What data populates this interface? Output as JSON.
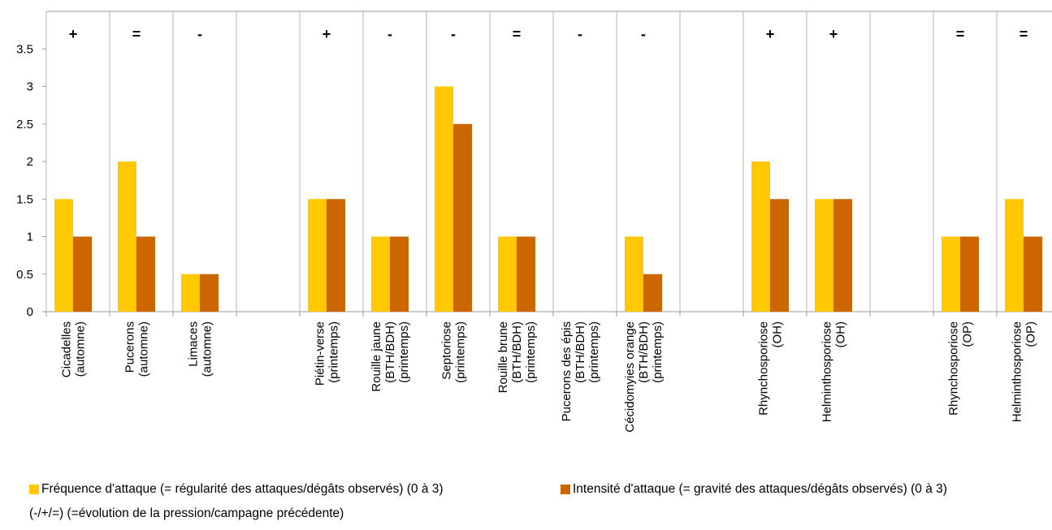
{
  "chart_data": {
    "type": "bar",
    "ylim": [
      0,
      4
    ],
    "yticks": [
      "0",
      "0.5",
      "1",
      "1.5",
      "2",
      "2.5",
      "3",
      "3.5"
    ],
    "categories": [
      {
        "lines": [
          "Cicadelles",
          "(automne)"
        ],
        "trend": "+"
      },
      {
        "lines": [
          "Pucerons",
          "(automne)"
        ],
        "trend": "="
      },
      {
        "lines": [
          "Limaces",
          "(automne)"
        ],
        "trend": "-"
      },
      {
        "lines": [],
        "trend": ""
      },
      {
        "lines": [
          "Piétin-verse",
          "(printemps)"
        ],
        "trend": "+"
      },
      {
        "lines": [
          "Rouille jaune",
          "(BTH/BDH)",
          "(printemps)"
        ],
        "trend": "-"
      },
      {
        "lines": [
          "Septoriose",
          "(printemps)"
        ],
        "trend": "-"
      },
      {
        "lines": [
          "Rouille brune",
          "(BTH/BDH)",
          "(printemps)"
        ],
        "trend": "="
      },
      {
        "lines": [
          "Pucerons des épis",
          "(BTH/BDH)",
          "(printemps)"
        ],
        "trend": "-"
      },
      {
        "lines": [
          "Cécidomyies orange",
          "(BTH/BDH)",
          "(printemps)"
        ],
        "trend": "-"
      },
      {
        "lines": [],
        "trend": ""
      },
      {
        "lines": [
          "Rhynchosporiose",
          "(OH)"
        ],
        "trend": "+"
      },
      {
        "lines": [
          "Helminthosporiose",
          "(OH)"
        ],
        "trend": "+"
      },
      {
        "lines": [],
        "trend": ""
      },
      {
        "lines": [
          "Rhynchosporiose",
          "(OP)"
        ],
        "trend": "="
      },
      {
        "lines": [
          "Helminthosporiose",
          "(OP)"
        ],
        "trend": "="
      }
    ],
    "series": [
      {
        "name": "Fréquence d'attaque (= régularité des attaques/dégâts observés) (0 à 3)",
        "color": "#FFC800",
        "values": [
          1.5,
          2,
          0.5,
          null,
          1.5,
          1,
          3,
          1,
          null,
          1,
          null,
          2,
          1.5,
          null,
          1,
          1.5
        ]
      },
      {
        "name": "Intensité d'attaque (= gravité des attaques/dégâts observés) (0 à 3)",
        "color": "#CC6600",
        "values": [
          1,
          1,
          0.5,
          null,
          1.5,
          1,
          2.5,
          1,
          null,
          0.5,
          null,
          1.5,
          1.5,
          null,
          1,
          1
        ]
      }
    ],
    "legend_position": "bottom",
    "grid": false
  },
  "note": "(-/+/=) (=évolution de la pression/campagne précédente)"
}
